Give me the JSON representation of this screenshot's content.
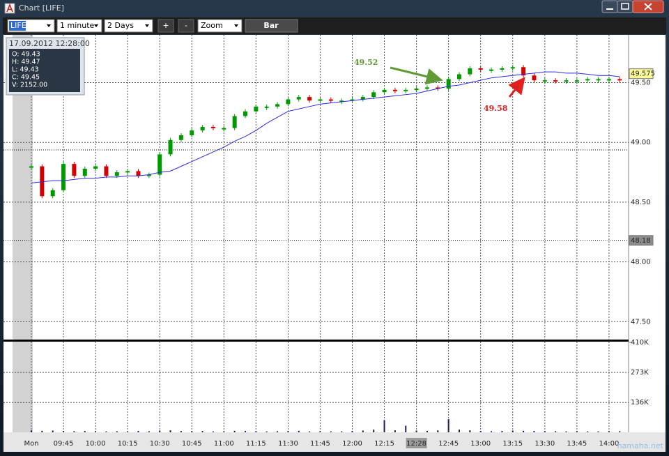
{
  "window": {
    "title": "Chart [LIFE]"
  },
  "toolbar": {
    "symbol": "LIFE",
    "interval": "1 minute",
    "range": "2 Days",
    "zoom_in": "+",
    "zoom_out": "-",
    "zoom": "Zoom",
    "style": "Bar"
  },
  "info": {
    "datetime": "17.09.2012 12:28:00",
    "lines": [
      "O: 49.43",
      "H: 49.47",
      "L: 49.43",
      "C: 49.45",
      "V: 2152.00"
    ]
  },
  "chart_data": [
    {
      "type": "candlestick",
      "categories": [
        "Mon",
        null,
        null,
        "09:45",
        null,
        null,
        "10:00",
        null,
        null,
        "10:15",
        null,
        null,
        "10:30",
        null,
        null,
        "10:45",
        null,
        null,
        "11:00",
        null,
        null,
        "11:15",
        null,
        null,
        "11:30",
        null,
        null,
        "11:45",
        null,
        null,
        "12:00",
        null,
        null,
        "12:15",
        null,
        null,
        "12:28",
        null,
        null,
        "12:45",
        null,
        null,
        "13:00",
        null,
        null,
        "13:15",
        null,
        null,
        "13:30",
        null,
        null,
        "13:45",
        null,
        null,
        "14:00",
        null
      ],
      "values": [
        48.8,
        48.55,
        48.6,
        48.82,
        48.72,
        48.78,
        48.8,
        48.72,
        48.75,
        48.76,
        48.72,
        48.73,
        48.9,
        49.02,
        49.06,
        49.1,
        49.13,
        49.12,
        49.12,
        49.22,
        49.26,
        49.3,
        49.3,
        49.32,
        49.36,
        49.38,
        49.35,
        49.36,
        49.35,
        49.35,
        49.36,
        49.38,
        49.42,
        49.44,
        49.43,
        49.44,
        49.45,
        49.46,
        49.45,
        49.53,
        49.57,
        49.62,
        49.61,
        49.61,
        49.62,
        49.63,
        49.56,
        49.52,
        49.52,
        49.51,
        49.52,
        49.52,
        49.53,
        49.53,
        49.53,
        49.52
      ],
      "color_up": "#009a00",
      "color_down": "#d40000",
      "average": {
        "color": "#2a2ae0",
        "values": [
          48.66,
          48.67,
          48.68,
          48.68,
          48.69,
          48.7,
          48.7,
          48.71,
          48.71,
          48.72,
          48.72,
          48.73,
          48.75,
          48.76,
          48.8,
          48.84,
          48.88,
          48.92,
          48.96,
          49.01,
          49.05,
          49.1,
          49.16,
          49.21,
          49.26,
          49.28,
          49.3,
          49.32,
          49.33,
          49.34,
          49.35,
          49.36,
          49.37,
          49.38,
          49.39,
          49.4,
          49.41,
          49.43,
          49.45,
          49.47,
          49.48,
          49.5,
          49.52,
          49.54,
          49.55,
          49.56,
          49.57,
          49.58,
          49.59,
          49.59,
          49.58,
          49.58,
          49.57,
          49.56,
          49.56,
          49.55
        ]
      },
      "ylim": [
        47.35,
        49.9
      ],
      "yticks": [
        {
          "value": 47.5,
          "label": "47.50"
        },
        {
          "value": 48,
          "label": "48.00"
        },
        {
          "value": 48.5,
          "label": "48.50"
        },
        {
          "value": 49,
          "label": "49.00"
        },
        {
          "value": 49.5,
          "label": "49.50"
        }
      ],
      "price_tags": [
        {
          "value": 49.575,
          "color": "#ffff99"
        },
        {
          "value": 48.18,
          "color": "#8c8c8c"
        }
      ],
      "annotations": [
        {
          "text": "49.52",
          "color": "#5f9a35"
        },
        {
          "text": "49.58",
          "color": "#e0201e"
        }
      ],
      "grid": true
    },
    {
      "type": "bar",
      "values": [
        9000,
        7000,
        8000,
        6000,
        5000,
        6000,
        5000,
        4000,
        5000,
        4000,
        6000,
        5000,
        8000,
        9000,
        6000,
        5000,
        6000,
        4000,
        4000,
        7000,
        6000,
        5000,
        4000,
        5000,
        6000,
        7000,
        4000,
        5000,
        4000,
        4000,
        6000,
        8000,
        12000,
        55000,
        9000,
        30000,
        8000,
        7000,
        9000,
        60000,
        12000,
        9000,
        6000,
        5000,
        6000,
        8000,
        7000,
        6000,
        5000,
        5000,
        4000,
        5000,
        4000,
        4000,
        5000,
        5000
      ],
      "color": "#1a1a55",
      "ylim": [
        0,
        410000
      ],
      "yticks": [
        {
          "value": 136000,
          "label": "136K"
        },
        {
          "value": 273000,
          "label": "273K"
        },
        {
          "value": 410000,
          "label": "410K"
        }
      ],
      "grid": true
    }
  ],
  "watermark": "hamaha.net"
}
